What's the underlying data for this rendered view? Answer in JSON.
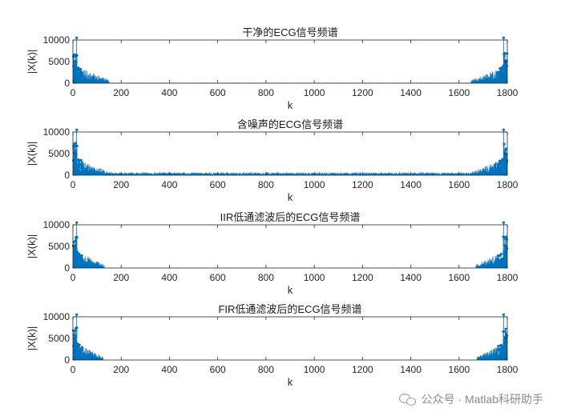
{
  "colors": {
    "series": "#0072BD",
    "axis": "#262626",
    "frame": "#262626"
  },
  "chart_data": [
    {
      "type": "bar",
      "title": "干净的ECG信号频谱",
      "xlabel": "k",
      "ylabel": "|X(k)|",
      "xlim": [
        0,
        1800
      ],
      "ylim": [
        0,
        10000
      ],
      "xticks": [
        "0",
        "200",
        "400",
        "600",
        "800",
        "1000",
        "1200",
        "1400",
        "1600",
        "1800"
      ],
      "yticks": [
        "0",
        "5000",
        "10000"
      ],
      "n_points": 1800,
      "spectrum": {
        "dc": 300,
        "peak": 10500,
        "peak_bin": 15,
        "low_band_end": 150,
        "low_band_level": 2500,
        "noise_floor": 80
      }
    },
    {
      "type": "bar",
      "title": "含噪声的ECG信号频谱",
      "xlabel": "k",
      "ylabel": "|X(k)|",
      "xlim": [
        0,
        1800
      ],
      "ylim": [
        0,
        10000
      ],
      "xticks": [
        "0",
        "200",
        "400",
        "600",
        "800",
        "1000",
        "1200",
        "1400",
        "1600",
        "1800"
      ],
      "yticks": [
        "0",
        "5000",
        "10000"
      ],
      "n_points": 1800,
      "spectrum": {
        "dc": 300,
        "peak": 10500,
        "peak_bin": 15,
        "low_band_end": 150,
        "low_band_level": 2500,
        "noise_floor": 450
      }
    },
    {
      "type": "bar",
      "title": "IIR低通滤波后的ECG信号频谱",
      "xlabel": "k",
      "ylabel": "|X(k)|",
      "xlim": [
        0,
        1800
      ],
      "ylim": [
        0,
        10000
      ],
      "xticks": [
        "0",
        "200",
        "400",
        "600",
        "800",
        "1000",
        "1200",
        "1400",
        "1600",
        "1800"
      ],
      "yticks": [
        "0",
        "5000",
        "10000"
      ],
      "n_points": 1800,
      "spectrum": {
        "dc": 300,
        "peak": 10500,
        "peak_bin": 15,
        "low_band_end": 130,
        "low_band_level": 2500,
        "noise_floor": 15
      }
    },
    {
      "type": "bar",
      "title": "FIR低通滤波后的ECG信号频谱",
      "xlabel": "k",
      "ylabel": "|X(k)|",
      "xlim": [
        0,
        1800
      ],
      "ylim": [
        0,
        10000
      ],
      "xticks": [
        "0",
        "200",
        "400",
        "600",
        "800",
        "1000",
        "1200",
        "1400",
        "1600",
        "1800"
      ],
      "yticks": [
        "0",
        "5000",
        "10000"
      ],
      "n_points": 1800,
      "spectrum": {
        "dc": 300,
        "peak": 10500,
        "peak_bin": 15,
        "low_band_end": 125,
        "low_band_level": 2500,
        "noise_floor": 8
      }
    }
  ],
  "watermark": {
    "text": "公众号 · Matlab科研助手",
    "icon": "wechat-icon"
  }
}
